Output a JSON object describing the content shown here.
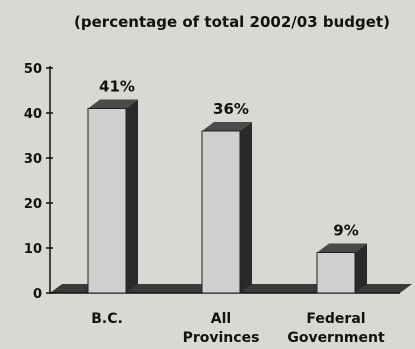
{
  "chart_data": {
    "type": "bar",
    "title": "",
    "subtitle": "(percentage of total 2002/03 budget)",
    "categories": [
      [
        "B.C."
      ],
      [
        "All",
        "Provinces"
      ],
      [
        "Federal",
        "Government"
      ]
    ],
    "values": [
      41,
      36,
      9
    ],
    "data_labels": [
      "41%",
      "36%",
      "9%"
    ],
    "yticks": [
      "0",
      "10",
      "20",
      "30",
      "40",
      "50"
    ],
    "ylim": [
      0,
      50
    ],
    "xlabel": "",
    "ylabel": "",
    "grid": false,
    "style": "3d-bar",
    "colors": {
      "bar_face": "#cfcfcf",
      "bar_side": "#2a2a2a",
      "bar_top": "#4a4a4a",
      "floor": "#3a3a3a",
      "axis": "#111111",
      "background": "#d9d8d3"
    }
  }
}
